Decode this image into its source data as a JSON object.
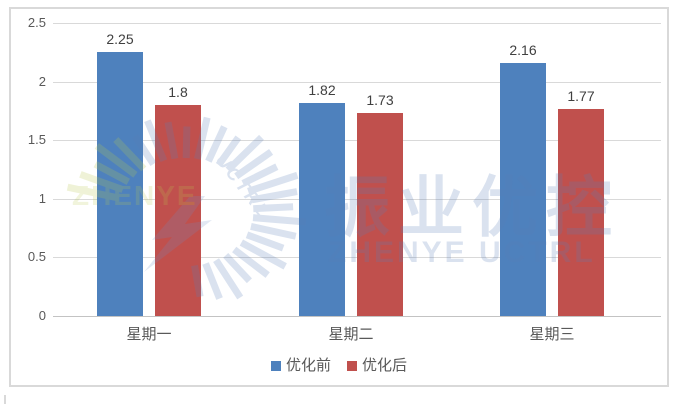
{
  "chart_data": {
    "type": "bar",
    "title": "",
    "xlabel": "",
    "ylabel": "",
    "categories": [
      "星期一",
      "星期二",
      "星期三"
    ],
    "series": [
      {
        "name": "优化前",
        "color": "#4E81BD",
        "values": [
          2.25,
          1.82,
          2.16
        ],
        "labels": [
          "2.25",
          "1.82",
          "2.16"
        ]
      },
      {
        "name": "优化后",
        "color": "#C0504D",
        "values": [
          1.8,
          1.73,
          1.77
        ],
        "labels": [
          "1.8",
          "1.73",
          "1.77"
        ]
      }
    ],
    "ylim": [
      0,
      2.5
    ],
    "yticks": [
      {
        "value": 0,
        "label": "0"
      },
      {
        "value": 0.5,
        "label": "0.5"
      },
      {
        "value": 1,
        "label": "1"
      },
      {
        "value": 1.5,
        "label": "1.5"
      },
      {
        "value": 2,
        "label": "2"
      },
      {
        "value": 2.5,
        "label": "2.5"
      }
    ],
    "grid": true,
    "legend_position": "bottom"
  },
  "watermark": {
    "brand_latin": "ZHENYE",
    "brand_arc": "UCTRL",
    "brand_cjk": "振业优控",
    "brand_full": "ZHENYE UCTRL"
  },
  "colors": {
    "series1": "#4E81BD",
    "series2": "#C0504D",
    "gridline": "#D9D9D9",
    "axis_text": "#595959",
    "data_label_text": "#404040",
    "frame_border": "#D9D9D9",
    "watermark_blue": "#5B7FB8",
    "watermark_green": "#B9C94F"
  }
}
